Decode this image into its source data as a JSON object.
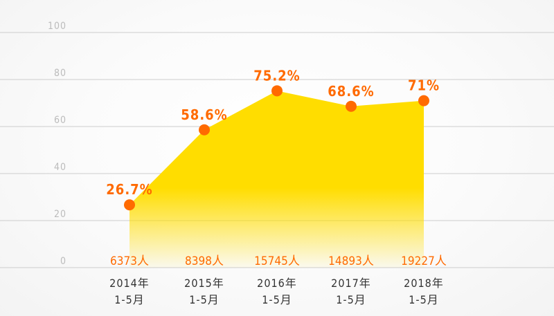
{
  "chart_data": {
    "type": "area",
    "categories": [
      [
        "2014年",
        "1-5月"
      ],
      [
        "2015年",
        "1-5月"
      ],
      [
        "2016年",
        "1-5月"
      ],
      [
        "2017年",
        "1-5月"
      ],
      [
        "2018年",
        "1-5月"
      ]
    ],
    "values": [
      26.7,
      58.6,
      75.2,
      68.6,
      71
    ],
    "value_labels": [
      "26.7%",
      "58.6%",
      "75.2%",
      "68.6%",
      "71%"
    ],
    "counts": [
      "6373人",
      "8398人",
      "15745人",
      "14893人",
      "19227人"
    ],
    "yticks": [
      0,
      20,
      40,
      60,
      80,
      100
    ],
    "ylim": [
      0,
      100
    ],
    "grid": true,
    "colors": {
      "fill": "#FFDD00",
      "marker": "#FF6A00",
      "label": "#FF6A00",
      "axis_text": "#BBBBBB",
      "category_text": "#333333",
      "grid": "#CCCCCC"
    }
  }
}
